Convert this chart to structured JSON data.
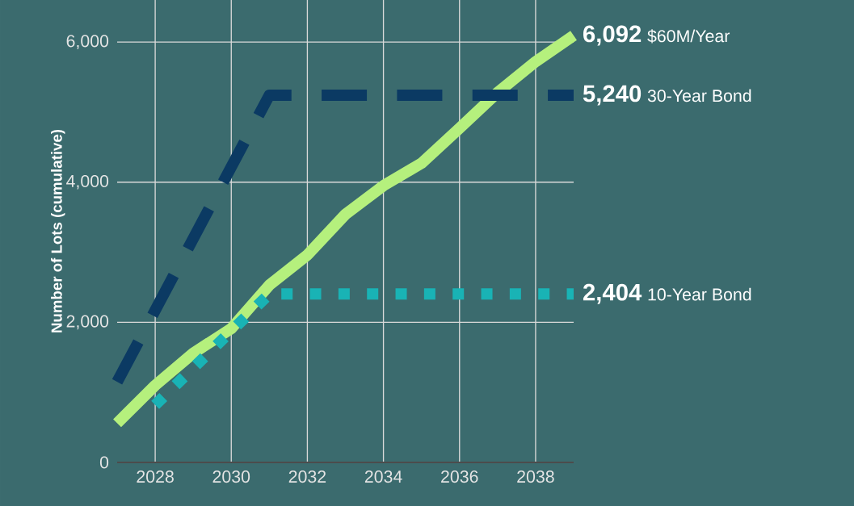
{
  "chart_data": {
    "type": "line",
    "ylabel": "Number of Lots (cumulative)",
    "xlim": [
      2027,
      2039
    ],
    "ylim": [
      0,
      6600
    ],
    "xticks": [
      2028,
      2030,
      2032,
      2034,
      2036,
      2038
    ],
    "yticks": [
      {
        "value": 0,
        "label": "0"
      },
      {
        "value": 2000,
        "label": "2,000"
      },
      {
        "value": 4000,
        "label": "4,000"
      },
      {
        "value": 6000,
        "label": "6,000"
      }
    ],
    "grid": true,
    "series": [
      {
        "name": "$60M/Year",
        "color": "#b5f07d",
        "line_style": "solid",
        "x": [
          2027,
          2028,
          2029,
          2030,
          2031,
          2032,
          2033,
          2034,
          2035,
          2036,
          2037,
          2038,
          2039
        ],
        "values": [
          560,
          1100,
          1560,
          1910,
          2530,
          2960,
          3540,
          3950,
          4270,
          4770,
          5280,
          5720,
          6092
        ],
        "value_labels": [
          null,
          null,
          null,
          null,
          null,
          null,
          null,
          null,
          null,
          null,
          null,
          null,
          "6,092"
        ]
      },
      {
        "name": "30-Year Bond",
        "color": "#0b3a63",
        "line_style": "dashed",
        "x": [
          2027,
          2031,
          2039
        ],
        "values": [
          1150,
          5240,
          5240
        ],
        "value_labels": [
          null,
          null,
          "5,240"
        ]
      },
      {
        "name": "10-Year Bond",
        "color": "#19b3b5",
        "line_style": "dotted",
        "x": [
          2028,
          2031,
          2039
        ],
        "values": [
          820,
          2404,
          2404
        ],
        "value_labels": [
          null,
          null,
          "2,404"
        ]
      }
    ]
  }
}
